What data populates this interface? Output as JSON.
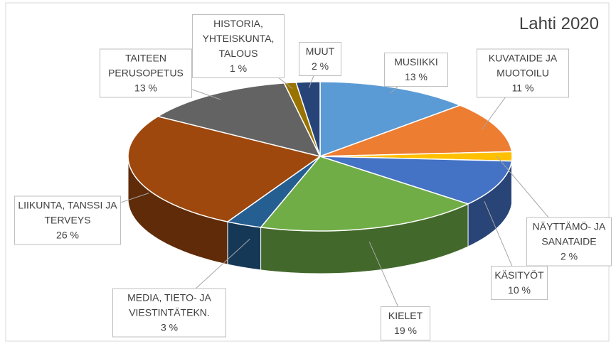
{
  "chart_data": {
    "type": "pie",
    "title": "Lahti 2020",
    "categories": [
      "MUSIIKKI",
      "KUVATAIDE JA MUOTOILU",
      "NÄYTTÄMÖ- JA SANATAIDE",
      "KÄSITYÖT",
      "KIELET",
      "MEDIA, TIETO- JA VIESTINTÄTEKN.",
      "LIIKUNTA, TANSSI JA TERVEYS",
      "TAITEEN PERUSOPETUS",
      "HISTORIA, YHTEISKUNTA, TALOUS",
      "MUUT"
    ],
    "values": [
      13,
      11,
      2,
      10,
      19,
      3,
      26,
      13,
      1,
      2
    ],
    "value_labels": [
      "13 %",
      "11 %",
      "2 %",
      "10 %",
      "19 %",
      "3 %",
      "26 %",
      "13 %",
      "1 %",
      "2 %"
    ],
    "colors": [
      "#5b9bd5",
      "#ed7d31",
      "#ffc000",
      "#4472c4",
      "#70ad47",
      "#255e91",
      "#9e480e",
      "#636363",
      "#997300",
      "#264478"
    ]
  }
}
